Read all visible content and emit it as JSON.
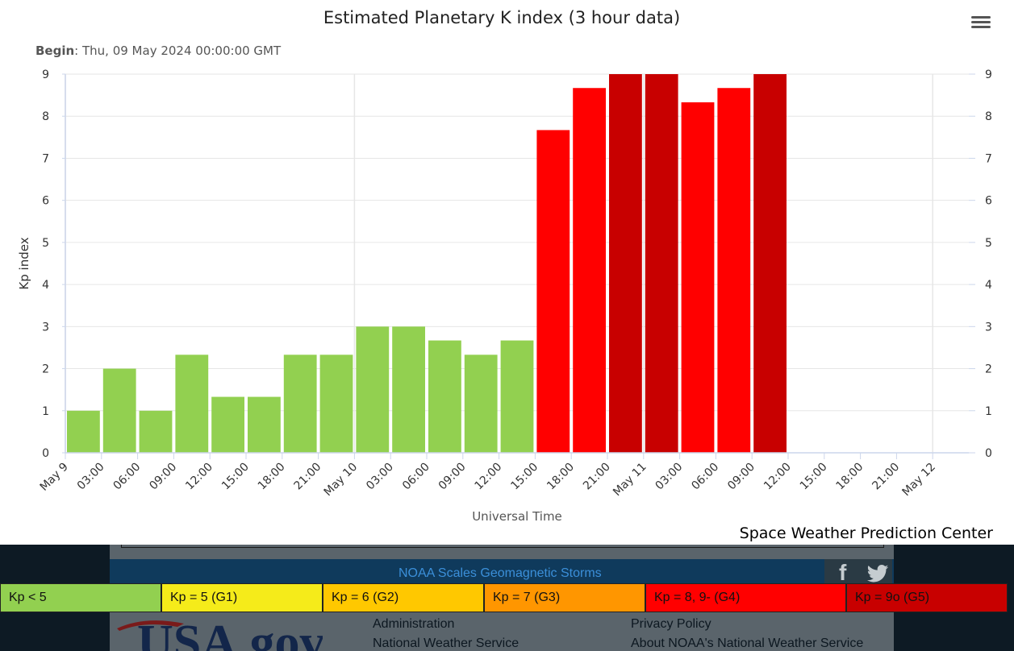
{
  "chart_data": {
    "type": "bar",
    "title": "Estimated Planetary K index (3 hour data)",
    "subtitle_label": "Begin",
    "subtitle_value": ": Thu, 09 May 2024 00:00:00 GMT",
    "ylabel": "Kp index",
    "xlabel": "Universal Time",
    "credit": "Space Weather Prediction Center",
    "ylim": [
      0,
      9
    ],
    "yticks": [
      "0",
      "1",
      "2",
      "3",
      "4",
      "5",
      "6",
      "7",
      "8",
      "9"
    ],
    "xticks": [
      "May 9",
      "03:00",
      "06:00",
      "09:00",
      "12:00",
      "15:00",
      "18:00",
      "21:00",
      "May 10",
      "03:00",
      "06:00",
      "09:00",
      "12:00",
      "15:00",
      "18:00",
      "21:00",
      "May 11",
      "03:00",
      "06:00",
      "09:00",
      "12:00",
      "15:00",
      "18:00",
      "21:00",
      "May 12"
    ],
    "x_major_ticks": [
      0,
      8,
      16,
      24
    ],
    "series": [
      {
        "values": [
          1.0,
          2.0,
          1.0,
          2.33,
          1.33,
          1.33,
          2.33,
          2.33,
          3.0,
          3.0,
          2.67,
          2.33,
          2.67,
          7.67,
          8.67,
          9.0,
          9.0,
          8.33,
          8.67,
          9.0
        ],
        "colors": [
          "#92d050",
          "#92d050",
          "#92d050",
          "#92d050",
          "#92d050",
          "#92d050",
          "#92d050",
          "#92d050",
          "#92d050",
          "#92d050",
          "#92d050",
          "#92d050",
          "#92d050",
          "#ff0000",
          "#ff0000",
          "#c80000",
          "#c80000",
          "#ff0000",
          "#ff0000",
          "#c80000"
        ]
      }
    ],
    "grid": true,
    "colors": {
      "green": "#92d050",
      "red": "#ff0000",
      "dark_red": "#c80000",
      "grid": "#e6e6e6"
    }
  },
  "menu": {
    "icon": "hamburger-menu-icon"
  },
  "footer": {
    "noaa_scales_link": "NOAA Scales Geomagnetic Storms",
    "legend": [
      {
        "label": "Kp < 5",
        "color": "#92d050"
      },
      {
        "label": "Kp = 5 (G1)",
        "color": "#f5eb1a"
      },
      {
        "label": "Kp = 6 (G2)",
        "color": "#ffc800"
      },
      {
        "label": "Kp = 7 (G3)",
        "color": "#ff9600"
      },
      {
        "label": "Kp = 8, 9- (G4)",
        "color": "#ff0000"
      },
      {
        "label": "Kp = 9o (G5)",
        "color": "#c80000"
      }
    ],
    "usa_gov": "USA.gov",
    "links_left": [
      "Administration",
      "National Weather Service"
    ],
    "links_right": [
      "Privacy Policy",
      "About NOAA's National Weather Service"
    ],
    "social_icons": [
      "facebook-icon",
      "twitter-icon"
    ]
  }
}
